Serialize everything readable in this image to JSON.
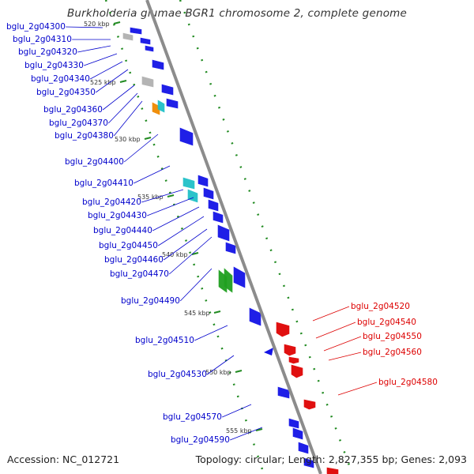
{
  "title": "Burkholderia glumae BGR1 chromosome 2, complete genome",
  "footer": {
    "accession": "Accession: NC_012721",
    "summary": "Topology: circular; Length: 2,827,355 bp; Genes: 2,093"
  },
  "colors": {
    "forward_label": "#0000cc",
    "reverse_label": "#dd0000",
    "backbone": "#8c8c8c",
    "gc_ticks": "#228b22",
    "cds_blue": "#1414e6",
    "cds_red": "#e01010",
    "cds_cyan": "#20c0c8",
    "cds_orange": "#f08a00",
    "cds_gray": "#b0b0b0",
    "cds_green": "#20a020"
  },
  "scale_labels": [
    "520 kbp",
    "525 kbp",
    "530 kbp",
    "535 kbp",
    "540 kbp",
    "545 kbp",
    "550 kbp",
    "555 kbp"
  ],
  "forward_genes": [
    "bglu_2g04300",
    "bglu_2g04310",
    "bglu_2g04320",
    "bglu_2g04330",
    "bglu_2g04340",
    "bglu_2g04350",
    "bglu_2g04360",
    "bglu_2g04370",
    "bglu_2g04380",
    "bglu_2g04400",
    "bglu_2g04410",
    "bglu_2g04420",
    "bglu_2g04430",
    "bglu_2g04440",
    "bglu_2g04450",
    "bglu_2g04460",
    "bglu_2g04470",
    "bglu_2g04490",
    "bglu_2g04510",
    "bglu_2g04530",
    "bglu_2g04570",
    "bglu_2g04590"
  ],
  "reverse_genes": [
    "bglu_2g04520",
    "bglu_2g04540",
    "bglu_2g04550",
    "bglu_2g04560",
    "bglu_2g04580"
  ]
}
